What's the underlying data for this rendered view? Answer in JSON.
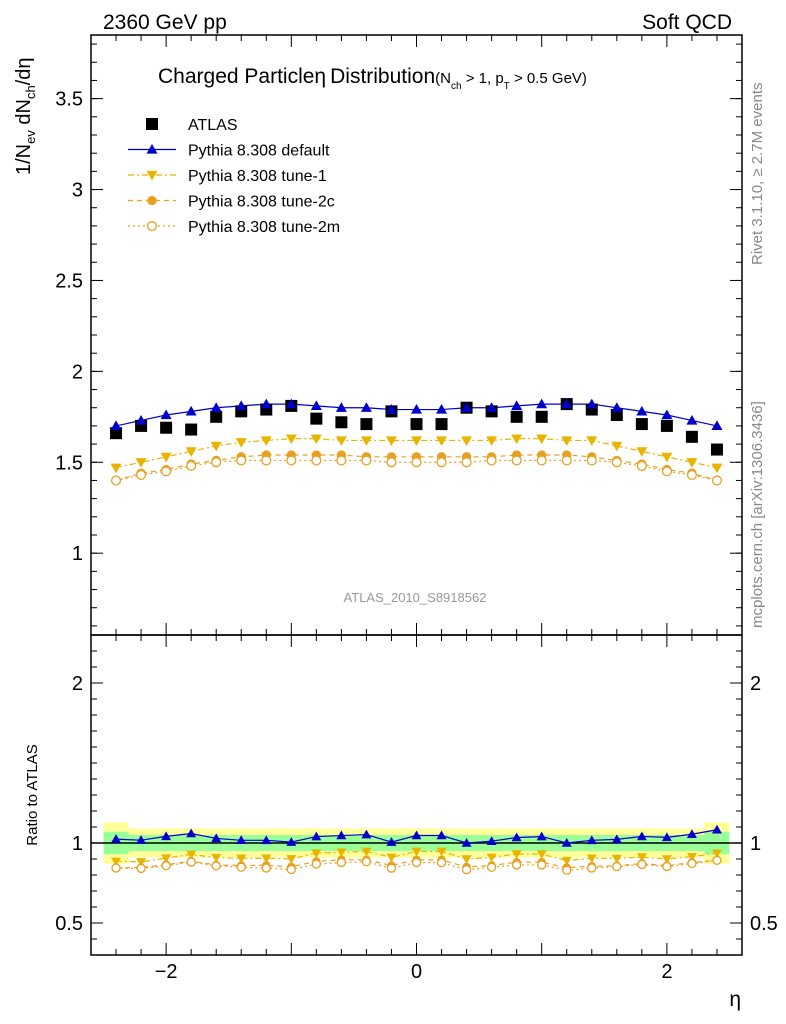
{
  "header": {
    "left_label": "2360 GeV pp",
    "right_label": "Soft QCD"
  },
  "side_labels": {
    "rivet": "Rivet 3.1.10, ≥ 2.7M events",
    "mcplots": "mcplots.cern.ch [arXiv:1306.3436]"
  },
  "chart_data": {
    "type": "scatter",
    "title": "Charged Particle",
    "title_eta": "η",
    "title_suffix": "Distribution",
    "subtitle": "(N",
    "subtitle_sub1": "ch",
    "subtitle_mid": " > 1, p",
    "subtitle_sub2": "T",
    "subtitle_end": " > 0.5 GeV)",
    "analysis_id": "ATLAS_2010_S8918562",
    "ylabel_main": "1/N_ev dN_ch/dη",
    "ylabel_main_parts": {
      "a": "1/N",
      "b": "ev",
      "c": " dN",
      "d": "ch",
      "e": "/dη"
    },
    "ylabel_ratio": "Ratio to ATLAS",
    "xlabel": "η",
    "xlim": [
      -2.6,
      2.6
    ],
    "ylim_main": [
      0.55,
      3.85
    ],
    "ylim_ratio": [
      0.3,
      2.3
    ],
    "x_ticks": [
      -2,
      0,
      2
    ],
    "x_tick_labels": [
      "−2",
      "0",
      "2"
    ],
    "y_ticks_main": [
      1,
      1.5,
      2,
      2.5,
      3,
      3.5
    ],
    "y_tick_labels_main": [
      "1",
      "1.5",
      "2",
      "2.5",
      "3",
      "3.5"
    ],
    "y_ticks_ratio": [
      0.5,
      1,
      2
    ],
    "y_tick_labels_ratio": [
      "0.5",
      "1",
      "2"
    ],
    "x": [
      -2.4,
      -2.2,
      -2.0,
      -1.8,
      -1.6,
      -1.4,
      -1.2,
      -1.0,
      -0.8,
      -0.6,
      -0.4,
      -0.2,
      0.0,
      0.2,
      0.4,
      0.6,
      0.8,
      1.0,
      1.2,
      1.4,
      1.6,
      1.8,
      2.0,
      2.2,
      2.4
    ],
    "series": [
      {
        "name": "ATLAS",
        "color": "#000000",
        "marker": "square",
        "values": [
          1.66,
          1.7,
          1.69,
          1.68,
          1.75,
          1.78,
          1.79,
          1.81,
          1.74,
          1.72,
          1.71,
          1.78,
          1.71,
          1.71,
          1.8,
          1.78,
          1.75,
          1.75,
          1.82,
          1.79,
          1.76,
          1.71,
          1.7,
          1.64,
          1.57
        ]
      },
      {
        "name": "Pythia 8.308 default",
        "color": "#0000cc",
        "marker": "triangle-up",
        "line": "solid",
        "values": [
          1.7,
          1.73,
          1.76,
          1.78,
          1.8,
          1.81,
          1.82,
          1.82,
          1.81,
          1.8,
          1.8,
          1.79,
          1.79,
          1.79,
          1.8,
          1.8,
          1.81,
          1.82,
          1.82,
          1.82,
          1.8,
          1.78,
          1.76,
          1.73,
          1.7
        ]
      },
      {
        "name": "Pythia 8.308 tune-1",
        "color": "#e8b400",
        "marker": "triangle-down",
        "line": "dashdot",
        "values": [
          1.47,
          1.5,
          1.53,
          1.56,
          1.59,
          1.61,
          1.62,
          1.63,
          1.63,
          1.62,
          1.62,
          1.62,
          1.62,
          1.62,
          1.62,
          1.62,
          1.63,
          1.63,
          1.62,
          1.62,
          1.59,
          1.56,
          1.53,
          1.5,
          1.47
        ]
      },
      {
        "name": "Pythia 8.308 tune-2c",
        "color": "#e8a020",
        "marker": "circle",
        "line": "dashed",
        "values": [
          1.4,
          1.44,
          1.46,
          1.49,
          1.51,
          1.53,
          1.54,
          1.54,
          1.54,
          1.54,
          1.53,
          1.53,
          1.53,
          1.53,
          1.53,
          1.53,
          1.54,
          1.54,
          1.54,
          1.53,
          1.51,
          1.49,
          1.46,
          1.44,
          1.4
        ]
      },
      {
        "name": "Pythia 8.308 tune-2m",
        "color": "#e8a020",
        "marker": "circle-open",
        "line": "dotted",
        "values": [
          1.4,
          1.43,
          1.45,
          1.48,
          1.5,
          1.51,
          1.51,
          1.51,
          1.51,
          1.51,
          1.51,
          1.5,
          1.5,
          1.5,
          1.5,
          1.51,
          1.51,
          1.51,
          1.51,
          1.51,
          1.5,
          1.48,
          1.45,
          1.43,
          1.4
        ]
      }
    ],
    "ratio_band": {
      "inner_color": "#99ff99",
      "outer_color": "#ffff99",
      "inner_rel_err": [
        0.07,
        0.05,
        0.05,
        0.05,
        0.05,
        0.05,
        0.05,
        0.05,
        0.05,
        0.05,
        0.05,
        0.05,
        0.05,
        0.05,
        0.05,
        0.05,
        0.05,
        0.05,
        0.05,
        0.05,
        0.05,
        0.05,
        0.05,
        0.05,
        0.07
      ],
      "outer_rel_err": [
        0.13,
        0.09,
        0.09,
        0.09,
        0.09,
        0.09,
        0.09,
        0.09,
        0.09,
        0.09,
        0.09,
        0.09,
        0.09,
        0.09,
        0.09,
        0.09,
        0.09,
        0.09,
        0.09,
        0.09,
        0.09,
        0.09,
        0.09,
        0.09,
        0.13
      ]
    },
    "legend_position": "top-left",
    "grid": false
  }
}
